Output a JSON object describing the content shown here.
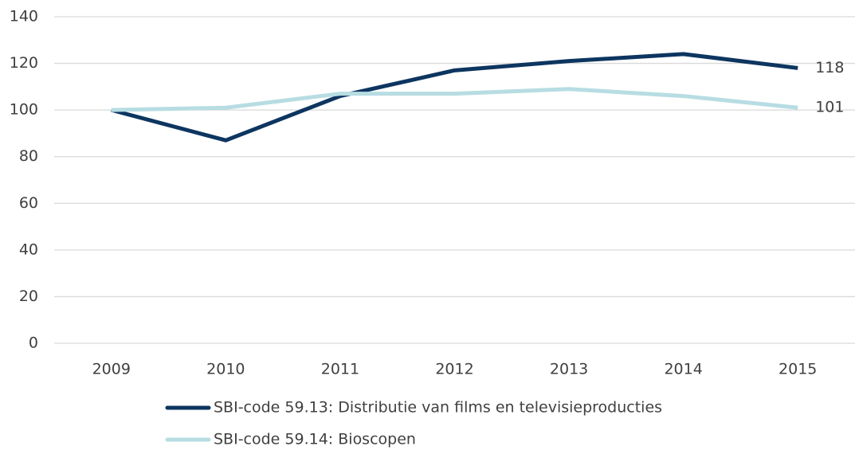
{
  "chart_data": {
    "type": "line",
    "categories": [
      "2009",
      "2010",
      "2011",
      "2012",
      "2013",
      "2014",
      "2015"
    ],
    "series": [
      {
        "name": "SBI-code 59.13: Distributie van films en televisieproducties",
        "color": "#0d3560",
        "values": [
          100,
          87,
          106,
          117,
          121,
          124,
          118
        ]
      },
      {
        "name": "SBI-code 59.14: Bioscopen",
        "color": "#b7dde3",
        "values": [
          100,
          101,
          107,
          107,
          109,
          106,
          101
        ]
      }
    ],
    "ylim": [
      0,
      140
    ],
    "yticks": [
      0,
      20,
      40,
      60,
      80,
      100,
      120,
      140
    ],
    "grid": true,
    "legend": "bottom"
  }
}
